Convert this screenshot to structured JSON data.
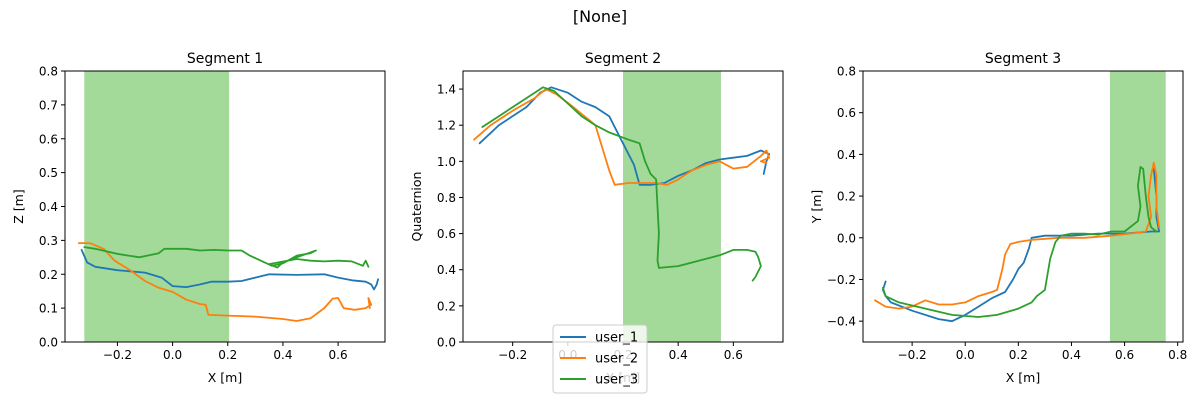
{
  "suptitle": "[None]",
  "colors": {
    "user_1": "#1f77b4",
    "user_2": "#ff7f0e",
    "user_3": "#2ca02c",
    "span": "#7fcc72"
  },
  "legend": {
    "placement": "bottom-center",
    "entries": [
      "user_1",
      "user_2",
      "user_3"
    ]
  },
  "chart_data": [
    {
      "type": "line",
      "title": "Segment 1",
      "xlabel": "X [m]",
      "ylabel": "Z [m]",
      "xlim": [
        -0.39,
        0.77
      ],
      "ylim": [
        0.0,
        0.8
      ],
      "xticks": [
        -0.2,
        0.0,
        0.2,
        0.4,
        0.6
      ],
      "xtick_labels": [
        "−0.2",
        "0.0",
        "0.2",
        "0.4",
        "0.6"
      ],
      "yticks": [
        0.0,
        0.1,
        0.2,
        0.3,
        0.4,
        0.5,
        0.6,
        0.7,
        0.8
      ],
      "ytick_labels": [
        "0.0",
        "0.1",
        "0.2",
        "0.3",
        "0.4",
        "0.5",
        "0.6",
        "0.7",
        "0.8"
      ],
      "span": [
        -0.32,
        0.205
      ],
      "series": [
        {
          "name": "user_1",
          "points": [
            [
              -0.33,
              0.272
            ],
            [
              -0.31,
              0.235
            ],
            [
              -0.28,
              0.222
            ],
            [
              -0.2,
              0.212
            ],
            [
              -0.1,
              0.205
            ],
            [
              -0.04,
              0.19
            ],
            [
              0.0,
              0.165
            ],
            [
              0.05,
              0.162
            ],
            [
              0.1,
              0.17
            ],
            [
              0.14,
              0.178
            ],
            [
              0.2,
              0.178
            ],
            [
              0.25,
              0.18
            ],
            [
              0.3,
              0.19
            ],
            [
              0.35,
              0.2
            ],
            [
              0.45,
              0.198
            ],
            [
              0.55,
              0.2
            ],
            [
              0.6,
              0.19
            ],
            [
              0.65,
              0.182
            ],
            [
              0.7,
              0.178
            ],
            [
              0.72,
              0.17
            ],
            [
              0.73,
              0.155
            ],
            [
              0.74,
              0.17
            ],
            [
              0.745,
              0.185
            ]
          ]
        },
        {
          "name": "user_2",
          "points": [
            [
              -0.34,
              0.292
            ],
            [
              -0.3,
              0.292
            ],
            [
              -0.25,
              0.275
            ],
            [
              -0.21,
              0.24
            ],
            [
              -0.15,
              0.21
            ],
            [
              -0.1,
              0.18
            ],
            [
              -0.05,
              0.16
            ],
            [
              0.0,
              0.148
            ],
            [
              0.05,
              0.125
            ],
            [
              0.1,
              0.112
            ],
            [
              0.12,
              0.11
            ],
            [
              0.13,
              0.08
            ],
            [
              0.2,
              0.078
            ],
            [
              0.3,
              0.075
            ],
            [
              0.4,
              0.068
            ],
            [
              0.45,
              0.062
            ],
            [
              0.5,
              0.07
            ],
            [
              0.55,
              0.1
            ],
            [
              0.58,
              0.128
            ],
            [
              0.6,
              0.13
            ],
            [
              0.62,
              0.1
            ],
            [
              0.66,
              0.095
            ],
            [
              0.7,
              0.1
            ],
            [
              0.72,
              0.11
            ],
            [
              0.71,
              0.13
            ],
            [
              0.715,
              0.1
            ]
          ]
        },
        {
          "name": "user_3",
          "points": [
            [
              -0.32,
              0.28
            ],
            [
              -0.28,
              0.275
            ],
            [
              -0.2,
              0.26
            ],
            [
              -0.12,
              0.25
            ],
            [
              -0.05,
              0.262
            ],
            [
              -0.03,
              0.275
            ],
            [
              0.05,
              0.275
            ],
            [
              0.1,
              0.27
            ],
            [
              0.15,
              0.272
            ],
            [
              0.2,
              0.27
            ],
            [
              0.25,
              0.27
            ],
            [
              0.28,
              0.255
            ],
            [
              0.32,
              0.24
            ],
            [
              0.36,
              0.225
            ],
            [
              0.4,
              0.232
            ],
            [
              0.45,
              0.255
            ],
            [
              0.5,
              0.262
            ],
            [
              0.52,
              0.27
            ],
            [
              0.45,
              0.25
            ],
            [
              0.4,
              0.235
            ],
            [
              0.38,
              0.22
            ],
            [
              0.35,
              0.23
            ],
            [
              0.45,
              0.245
            ],
            [
              0.5,
              0.24
            ],
            [
              0.55,
              0.238
            ],
            [
              0.6,
              0.24
            ],
            [
              0.65,
              0.238
            ],
            [
              0.69,
              0.225
            ],
            [
              0.7,
              0.24
            ],
            [
              0.71,
              0.222
            ]
          ]
        }
      ]
    },
    {
      "type": "line",
      "title": "Segment 2",
      "xlabel": "X [m]",
      "ylabel": "Quaternion",
      "xlim": [
        -0.38,
        0.78
      ],
      "ylim": [
        0.0,
        1.5
      ],
      "xticks": [
        -0.2,
        0.0,
        0.2,
        0.4,
        0.6
      ],
      "xtick_labels": [
        "−0.2",
        "0.0",
        "0.2",
        "0.4",
        "0.6"
      ],
      "yticks": [
        0.0,
        0.2,
        0.4,
        0.6,
        0.8,
        1.0,
        1.2,
        1.4
      ],
      "ytick_labels": [
        "0.0",
        "0.2",
        "0.4",
        "0.6",
        "0.8",
        "1.0",
        "1.2",
        "1.4"
      ],
      "span": [
        0.2,
        0.555
      ],
      "series": [
        {
          "name": "user_1",
          "points": [
            [
              -0.32,
              1.1
            ],
            [
              -0.25,
              1.2
            ],
            [
              -0.15,
              1.3
            ],
            [
              -0.1,
              1.38
            ],
            [
              -0.06,
              1.41
            ],
            [
              0.0,
              1.38
            ],
            [
              0.05,
              1.33
            ],
            [
              0.1,
              1.3
            ],
            [
              0.15,
              1.25
            ],
            [
              0.2,
              1.1
            ],
            [
              0.24,
              0.98
            ],
            [
              0.26,
              0.87
            ],
            [
              0.3,
              0.87
            ],
            [
              0.35,
              0.88
            ],
            [
              0.4,
              0.92
            ],
            [
              0.45,
              0.95
            ],
            [
              0.5,
              0.99
            ],
            [
              0.55,
              1.01
            ],
            [
              0.6,
              1.02
            ],
            [
              0.65,
              1.03
            ],
            [
              0.7,
              1.06
            ],
            [
              0.73,
              1.04
            ],
            [
              0.72,
              1.0
            ],
            [
              0.71,
              0.93
            ]
          ]
        },
        {
          "name": "user_2",
          "points": [
            [
              -0.34,
              1.12
            ],
            [
              -0.28,
              1.2
            ],
            [
              -0.2,
              1.28
            ],
            [
              -0.12,
              1.35
            ],
            [
              -0.08,
              1.4
            ],
            [
              -0.04,
              1.37
            ],
            [
              0.02,
              1.3
            ],
            [
              0.1,
              1.2
            ],
            [
              0.12,
              1.1
            ],
            [
              0.15,
              0.95
            ],
            [
              0.17,
              0.87
            ],
            [
              0.22,
              0.88
            ],
            [
              0.28,
              0.88
            ],
            [
              0.32,
              0.88
            ],
            [
              0.36,
              0.87
            ],
            [
              0.4,
              0.9
            ],
            [
              0.45,
              0.95
            ],
            [
              0.5,
              0.98
            ],
            [
              0.55,
              1.0
            ],
            [
              0.6,
              0.96
            ],
            [
              0.65,
              0.97
            ],
            [
              0.7,
              1.03
            ],
            [
              0.72,
              1.06
            ],
            [
              0.73,
              1.02
            ],
            [
              0.7,
              1.0
            ],
            [
              0.72,
              0.99
            ]
          ]
        },
        {
          "name": "user_3",
          "points": [
            [
              -0.31,
              1.19
            ],
            [
              -0.25,
              1.25
            ],
            [
              -0.18,
              1.32
            ],
            [
              -0.12,
              1.38
            ],
            [
              -0.09,
              1.41
            ],
            [
              -0.05,
              1.39
            ],
            [
              0.0,
              1.32
            ],
            [
              0.05,
              1.25
            ],
            [
              0.1,
              1.2
            ],
            [
              0.15,
              1.16
            ],
            [
              0.22,
              1.12
            ],
            [
              0.26,
              1.1
            ],
            [
              0.28,
              1.0
            ],
            [
              0.3,
              0.93
            ],
            [
              0.32,
              0.9
            ],
            [
              0.33,
              0.6
            ],
            [
              0.325,
              0.45
            ],
            [
              0.33,
              0.41
            ],
            [
              0.4,
              0.42
            ],
            [
              0.45,
              0.44
            ],
            [
              0.5,
              0.46
            ],
            [
              0.55,
              0.48
            ],
            [
              0.6,
              0.51
            ],
            [
              0.65,
              0.51
            ],
            [
              0.68,
              0.5
            ],
            [
              0.69,
              0.47
            ],
            [
              0.7,
              0.42
            ],
            [
              0.68,
              0.36
            ],
            [
              0.67,
              0.34
            ]
          ]
        }
      ]
    },
    {
      "type": "line",
      "title": "Segment 3",
      "xlabel": "X [m]",
      "ylabel": "Y [m]",
      "xlim": [
        -0.385,
        0.82
      ],
      "ylim": [
        -0.5,
        0.8
      ],
      "xticks": [
        -0.2,
        0.0,
        0.2,
        0.4,
        0.6,
        0.8
      ],
      "xtick_labels": [
        "−0.2",
        "0.0",
        "0.2",
        "0.4",
        "0.6",
        "0.8"
      ],
      "yticks": [
        -0.4,
        -0.2,
        0.0,
        0.2,
        0.4,
        0.6,
        0.8
      ],
      "ytick_labels": [
        "−0.4",
        "−0.2",
        "0.0",
        "0.2",
        "0.4",
        "0.6",
        "0.8"
      ],
      "span": [
        0.545,
        0.755
      ],
      "series": [
        {
          "name": "user_1",
          "points": [
            [
              -0.3,
              -0.21
            ],
            [
              -0.31,
              -0.25
            ],
            [
              -0.3,
              -0.28
            ],
            [
              -0.28,
              -0.31
            ],
            [
              -0.2,
              -0.35
            ],
            [
              -0.1,
              -0.39
            ],
            [
              -0.05,
              -0.4
            ],
            [
              0.0,
              -0.37
            ],
            [
              0.05,
              -0.33
            ],
            [
              0.1,
              -0.29
            ],
            [
              0.15,
              -0.26
            ],
            [
              0.18,
              -0.2
            ],
            [
              0.2,
              -0.15
            ],
            [
              0.22,
              -0.12
            ],
            [
              0.24,
              -0.05
            ],
            [
              0.25,
              0.0
            ],
            [
              0.3,
              0.01
            ],
            [
              0.4,
              0.01
            ],
            [
              0.5,
              0.02
            ],
            [
              0.6,
              0.02
            ],
            [
              0.7,
              0.03
            ],
            [
              0.73,
              0.03
            ],
            [
              0.72,
              0.1
            ],
            [
              0.72,
              0.2
            ],
            [
              0.71,
              0.33
            ]
          ]
        },
        {
          "name": "user_2",
          "points": [
            [
              -0.34,
              -0.3
            ],
            [
              -0.3,
              -0.33
            ],
            [
              -0.25,
              -0.34
            ],
            [
              -0.2,
              -0.33
            ],
            [
              -0.15,
              -0.3
            ],
            [
              -0.1,
              -0.32
            ],
            [
              -0.05,
              -0.32
            ],
            [
              0.0,
              -0.31
            ],
            [
              0.05,
              -0.28
            ],
            [
              0.1,
              -0.26
            ],
            [
              0.12,
              -0.25
            ],
            [
              0.14,
              -0.15
            ],
            [
              0.15,
              -0.08
            ],
            [
              0.17,
              -0.03
            ],
            [
              0.2,
              -0.02
            ],
            [
              0.25,
              -0.01
            ],
            [
              0.35,
              0.0
            ],
            [
              0.45,
              0.0
            ],
            [
              0.55,
              0.01
            ],
            [
              0.62,
              0.02
            ],
            [
              0.68,
              0.03
            ],
            [
              0.7,
              0.1
            ],
            [
              0.69,
              0.2
            ],
            [
              0.7,
              0.3
            ],
            [
              0.71,
              0.36
            ],
            [
              0.72,
              0.3
            ],
            [
              0.72,
              0.15
            ],
            [
              0.73,
              0.05
            ]
          ]
        },
        {
          "name": "user_3",
          "points": [
            [
              -0.31,
              -0.24
            ],
            [
              -0.3,
              -0.28
            ],
            [
              -0.25,
              -0.31
            ],
            [
              -0.15,
              -0.34
            ],
            [
              -0.05,
              -0.37
            ],
            [
              0.05,
              -0.38
            ],
            [
              0.12,
              -0.37
            ],
            [
              0.2,
              -0.34
            ],
            [
              0.25,
              -0.31
            ],
            [
              0.27,
              -0.28
            ],
            [
              0.3,
              -0.25
            ],
            [
              0.32,
              -0.1
            ],
            [
              0.34,
              -0.02
            ],
            [
              0.36,
              0.01
            ],
            [
              0.4,
              0.02
            ],
            [
              0.45,
              0.02
            ],
            [
              0.5,
              0.015
            ],
            [
              0.55,
              0.03
            ],
            [
              0.6,
              0.03
            ],
            [
              0.65,
              0.08
            ],
            [
              0.66,
              0.15
            ],
            [
              0.65,
              0.25
            ],
            [
              0.66,
              0.34
            ],
            [
              0.67,
              0.33
            ],
            [
              0.68,
              0.2
            ],
            [
              0.69,
              0.1
            ],
            [
              0.7,
              0.05
            ],
            [
              0.72,
              0.03
            ]
          ]
        }
      ]
    }
  ]
}
